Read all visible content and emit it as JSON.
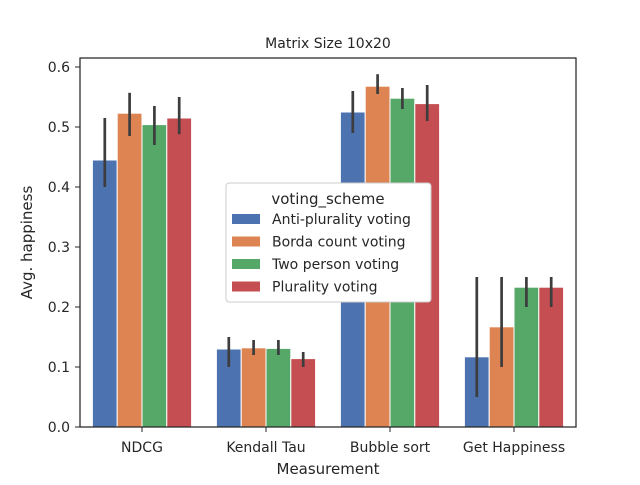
{
  "chart_data": {
    "type": "bar",
    "title": "Matrix Size 10x20",
    "xlabel": "Measurement",
    "ylabel": "Avg. happiness",
    "ylim": [
      0,
      0.6
    ],
    "y_ticks": [
      "0.0",
      "0.1",
      "0.2",
      "0.3",
      "0.4",
      "0.5",
      "0.6"
    ],
    "grid": false,
    "legend_title": "voting_scheme",
    "legend_position": "center",
    "categories": [
      "NDCG",
      "Kendall Tau",
      "Bubble sort",
      "Get Happiness"
    ],
    "series": [
      {
        "name": "Anti-plurality voting",
        "color": "#4c72b0",
        "values": [
          0.445,
          0.13,
          0.525,
          0.117
        ],
        "ci": [
          [
            0.4,
            0.515
          ],
          [
            0.1,
            0.15
          ],
          [
            0.49,
            0.56
          ],
          [
            0.05,
            0.25
          ]
        ]
      },
      {
        "name": "Borda count voting",
        "color": "#dd8452",
        "values": [
          0.523,
          0.132,
          0.568,
          0.167
        ],
        "ci": [
          [
            0.485,
            0.557
          ],
          [
            0.12,
            0.145
          ],
          [
            0.555,
            0.588
          ],
          [
            0.1,
            0.25
          ]
        ]
      },
      {
        "name": "Two person voting",
        "color": "#55a868",
        "values": [
          0.504,
          0.131,
          0.548,
          0.233
        ],
        "ci": [
          [
            0.47,
            0.535
          ],
          [
            0.12,
            0.145
          ],
          [
            0.53,
            0.565
          ],
          [
            0.2,
            0.25
          ]
        ]
      },
      {
        "name": "Plurality voting",
        "color": "#c44e52",
        "values": [
          0.515,
          0.114,
          0.539,
          0.233
        ],
        "ci": [
          [
            0.488,
            0.55
          ],
          [
            0.1,
            0.125
          ],
          [
            0.51,
            0.57
          ],
          [
            0.2,
            0.25
          ]
        ]
      }
    ]
  }
}
